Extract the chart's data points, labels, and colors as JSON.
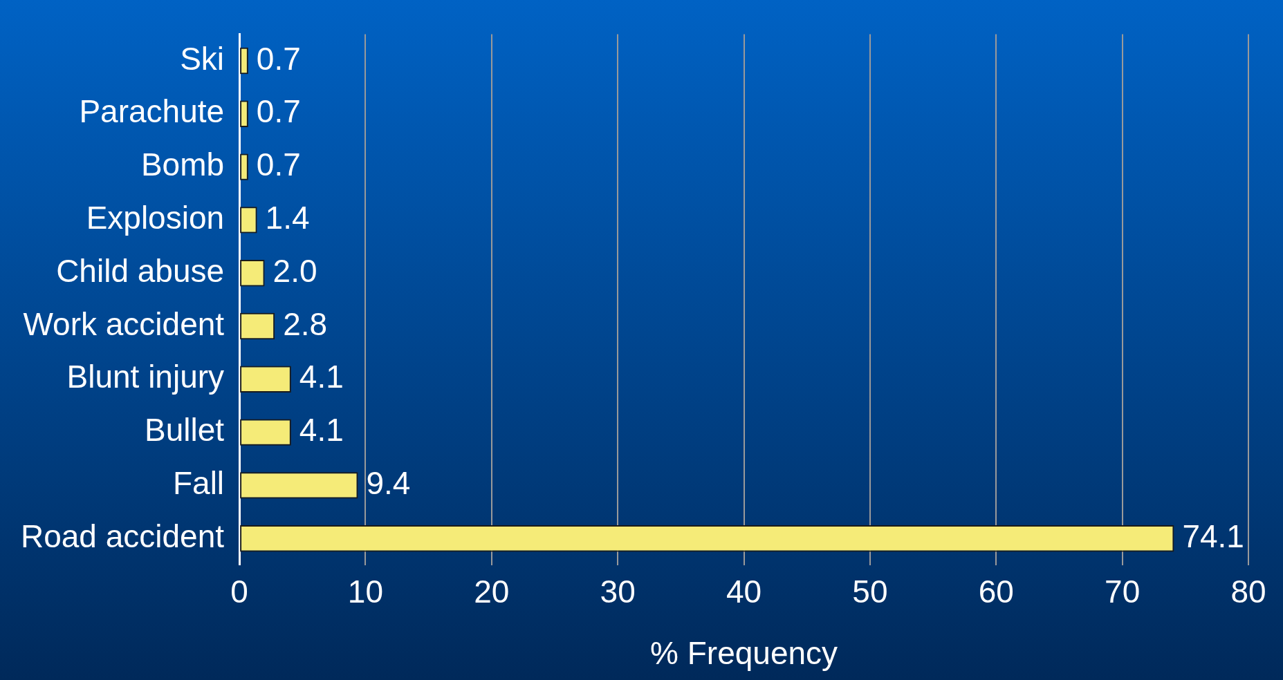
{
  "chart_data": {
    "type": "bar",
    "orientation": "horizontal",
    "xlabel": "% Frequency",
    "categories": [
      "Ski",
      "Parachute",
      "Bomb",
      "Explosion",
      "Child abuse",
      "Work accident",
      "Blunt injury",
      "Bullet",
      "Fall",
      "Road accident"
    ],
    "values": [
      0.7,
      0.7,
      0.7,
      1.4,
      2.0,
      2.8,
      4.1,
      4.1,
      9.4,
      74.1
    ],
    "value_labels": [
      "0.7",
      "0.7",
      "0.7",
      "1.4",
      "2.0",
      "2.8",
      "4.1",
      "4.1",
      "9.4",
      "74.1"
    ],
    "color": "#f5eb78",
    "xlim": [
      0,
      80
    ],
    "xticks": [
      0,
      10,
      20,
      30,
      40,
      50,
      60,
      70,
      80
    ],
    "grid": "x",
    "legend": false
  }
}
